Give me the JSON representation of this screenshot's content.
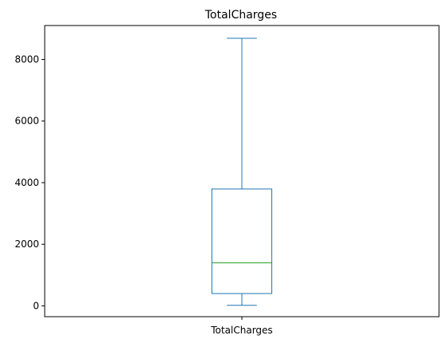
{
  "chart_data": {
    "type": "box",
    "title": "TotalCharges",
    "categories": [
      "TotalCharges"
    ],
    "boxes": [
      {
        "category": "TotalCharges",
        "whisker_low": 18.8,
        "q1": 401.4,
        "median": 1397.5,
        "q3": 3794.7,
        "whisker_high": 8684.8
      }
    ],
    "ylim": [
      -350,
      9100
    ],
    "yticks": [
      0,
      2000,
      4000,
      6000,
      8000
    ],
    "ytick_labels": [
      "0",
      "2000",
      "4000",
      "6000",
      "8000"
    ],
    "grid": false,
    "legend": "none",
    "colors": {
      "box": "#1f77b4",
      "median": "#2ca02c"
    }
  }
}
